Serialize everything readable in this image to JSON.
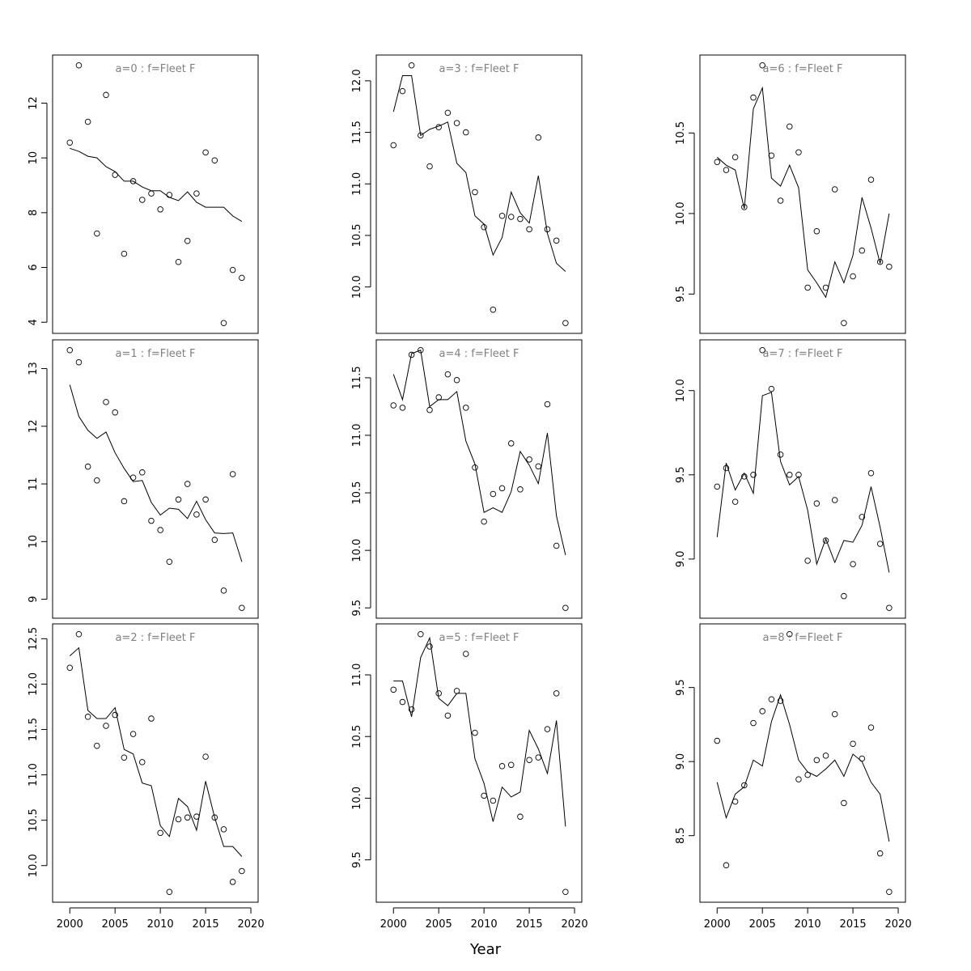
{
  "chart_data": {
    "type": "scatter",
    "xlabel": "Year",
    "xlim": [
      1998.1,
      2020.8
    ],
    "xticks": [
      2000,
      2005,
      2010,
      2015,
      2020
    ],
    "x": [
      2000,
      2001,
      2002,
      2003,
      2004,
      2005,
      2006,
      2007,
      2008,
      2009,
      2010,
      2011,
      2012,
      2013,
      2014,
      2015,
      2016,
      2017,
      2018,
      2019
    ],
    "panels": [
      {
        "title": "a=0  :  f=Fleet F",
        "yticks": [
          4,
          6,
          8,
          10,
          12
        ],
        "points": [
          10.56,
          13.38,
          11.32,
          7.24,
          12.3,
          9.38,
          6.5,
          9.15,
          8.47,
          8.7,
          8.12,
          8.65,
          6.2,
          6.97,
          8.7,
          10.2,
          9.91,
          3.97,
          5.91,
          5.62
        ],
        "line": [
          10.35,
          10.24,
          10.06,
          10.0,
          9.68,
          9.5,
          9.15,
          9.15,
          8.94,
          8.8,
          8.8,
          8.56,
          8.44,
          8.76,
          8.38,
          8.2,
          8.2,
          8.2,
          7.88,
          7.68
        ]
      },
      {
        "title": "a=1  :  f=Fleet F",
        "yticks": [
          9,
          10,
          11,
          12,
          13
        ],
        "points": [
          13.32,
          13.11,
          11.3,
          11.06,
          12.42,
          12.24,
          10.7,
          11.11,
          11.2,
          10.36,
          10.2,
          9.65,
          10.73,
          11.0,
          10.47,
          10.73,
          10.03,
          9.15,
          11.17,
          8.85
        ],
        "line": [
          12.72,
          12.17,
          11.93,
          11.79,
          11.9,
          11.54,
          11.27,
          11.04,
          11.06,
          10.68,
          10.46,
          10.58,
          10.56,
          10.4,
          10.7,
          10.38,
          10.15,
          10.14,
          10.15,
          9.65
        ]
      },
      {
        "title": "a=2  :  f=Fleet F",
        "yticks": [
          10.0,
          10.5,
          11.0,
          11.5,
          12.0,
          12.5
        ],
        "points": [
          12.18,
          12.55,
          11.64,
          11.32,
          11.54,
          11.66,
          11.19,
          11.45,
          11.14,
          11.62,
          10.36,
          9.71,
          10.51,
          10.53,
          10.54,
          11.2,
          10.53,
          10.4,
          9.82,
          9.94
        ],
        "line": [
          12.31,
          12.4,
          11.71,
          11.62,
          11.62,
          11.74,
          11.28,
          11.23,
          10.91,
          10.88,
          10.44,
          10.32,
          10.74,
          10.65,
          10.39,
          10.93,
          10.53,
          10.21,
          10.21,
          10.1
        ]
      },
      {
        "title": "a=3  :  f=Fleet F",
        "yticks": [
          10.0,
          10.5,
          11.0,
          11.5,
          12.0
        ],
        "points": [
          11.375,
          11.9,
          12.15,
          11.47,
          11.17,
          11.55,
          11.69,
          11.59,
          11.5,
          10.92,
          10.58,
          9.78,
          10.69,
          10.68,
          10.66,
          10.56,
          11.45,
          10.56,
          10.45,
          9.65
        ],
        "line": [
          11.7,
          12.05,
          12.05,
          11.47,
          11.53,
          11.56,
          11.6,
          11.2,
          11.11,
          10.69,
          10.61,
          10.31,
          10.48,
          10.92,
          10.72,
          10.62,
          11.08,
          10.52,
          10.23,
          10.15
        ]
      },
      {
        "title": "a=4  :  f=Fleet F",
        "yticks": [
          9.5,
          10.0,
          10.5,
          11.0,
          11.5
        ],
        "points": [
          11.26,
          11.24,
          11.7,
          11.74,
          11.22,
          11.33,
          11.53,
          11.48,
          11.24,
          10.72,
          10.25,
          10.49,
          10.54,
          10.93,
          10.53,
          10.79,
          10.73,
          11.27,
          10.04,
          9.5
        ],
        "line": [
          11.53,
          11.31,
          11.71,
          11.74,
          11.25,
          11.31,
          11.31,
          11.38,
          10.95,
          10.75,
          10.33,
          10.37,
          10.33,
          10.51,
          10.86,
          10.74,
          10.58,
          11.02,
          10.3,
          9.96
        ]
      },
      {
        "title": "a=5  :  f=Fleet F",
        "yticks": [
          9.5,
          10.0,
          10.5,
          11.0
        ],
        "points": [
          10.88,
          10.78,
          10.72,
          11.33,
          11.23,
          10.85,
          10.67,
          10.87,
          11.17,
          10.53,
          10.02,
          9.98,
          10.26,
          10.27,
          9.85,
          10.31,
          10.33,
          10.56,
          10.85,
          9.24
        ],
        "line": [
          10.95,
          10.95,
          10.66,
          11.14,
          11.3,
          10.81,
          10.75,
          10.85,
          10.85,
          10.32,
          10.12,
          9.81,
          10.09,
          10.01,
          10.05,
          10.55,
          10.4,
          10.2,
          10.63,
          9.77
        ]
      },
      {
        "title": "a=6  :  f=Fleet F",
        "yticks": [
          9.5,
          10.0,
          10.5
        ],
        "points": [
          10.32,
          10.27,
          10.35,
          10.04,
          10.72,
          10.92,
          10.36,
          10.08,
          10.54,
          10.38,
          9.54,
          9.89,
          9.54,
          10.15,
          9.32,
          9.61,
          9.77,
          10.21,
          9.7,
          9.67
        ],
        "line": [
          10.35,
          10.3,
          10.27,
          10.03,
          10.65,
          10.78,
          10.22,
          10.17,
          10.3,
          10.16,
          9.65,
          9.57,
          9.48,
          9.7,
          9.57,
          9.74,
          10.1,
          9.91,
          9.69,
          10.0
        ]
      },
      {
        "title": "a=7  :  f=Fleet F",
        "yticks": [
          9.0,
          9.5,
          10.0
        ],
        "points": [
          9.43,
          9.54,
          9.34,
          9.49,
          9.5,
          10.24,
          10.01,
          9.62,
          9.5,
          9.5,
          8.99,
          9.33,
          9.11,
          9.35,
          8.78,
          8.97,
          9.25,
          9.51,
          9.09,
          8.71
        ],
        "line": [
          9.13,
          9.57,
          9.41,
          9.51,
          9.39,
          9.97,
          9.99,
          9.58,
          9.44,
          9.49,
          9.29,
          8.97,
          9.12,
          8.98,
          9.11,
          9.1,
          9.2,
          9.43,
          9.19,
          8.92
        ]
      },
      {
        "title": "a=8  :  f=Fleet F",
        "yticks": [
          8.5,
          9.0,
          9.5
        ],
        "points": [
          9.14,
          8.3,
          8.73,
          8.84,
          9.26,
          9.34,
          9.42,
          9.41,
          9.86,
          8.88,
          8.91,
          9.01,
          9.04,
          9.32,
          8.72,
          9.12,
          9.02,
          9.23,
          8.38,
          8.12
        ],
        "line": [
          8.86,
          8.62,
          8.78,
          8.83,
          9.01,
          8.97,
          9.27,
          9.45,
          9.25,
          9.01,
          8.93,
          8.9,
          8.95,
          9.01,
          8.9,
          9.05,
          9.0,
          8.86,
          8.78,
          8.46
        ]
      }
    ]
  }
}
